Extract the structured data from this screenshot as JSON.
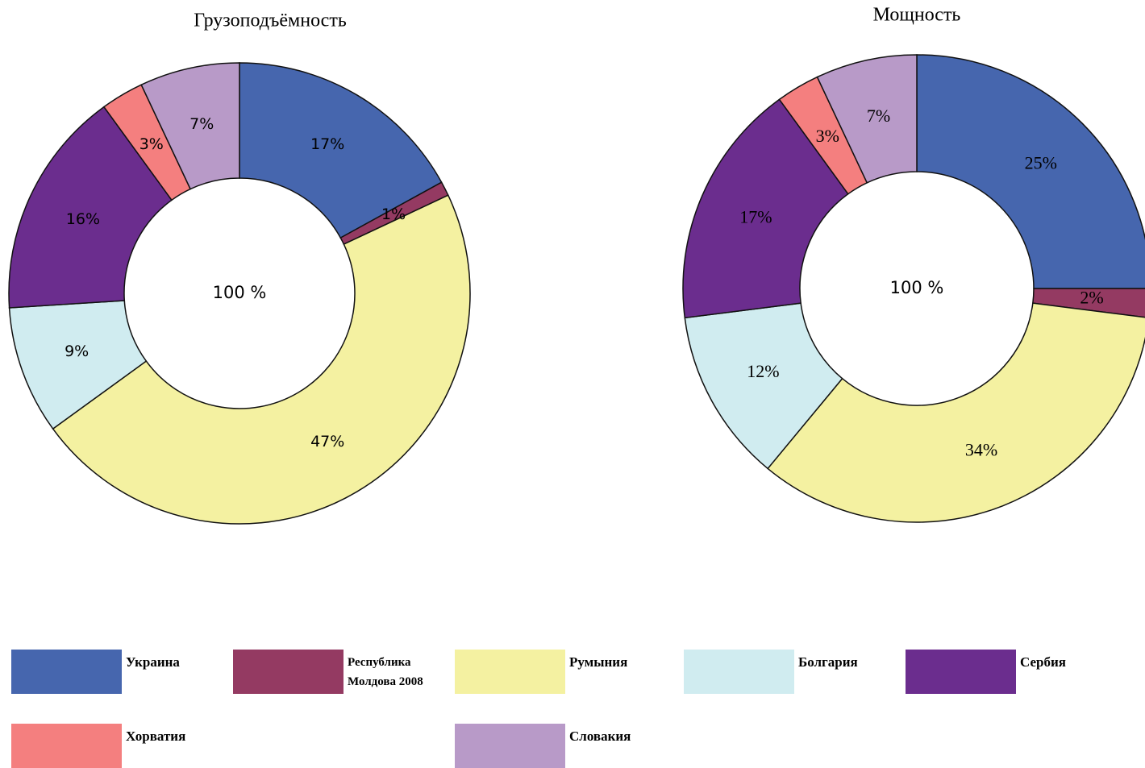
{
  "chart_data": [
    {
      "type": "pie",
      "title": "Грузоподъёмность",
      "center_label": "100 %",
      "categories": [
        "Украина",
        "Республика Молдова 2008",
        "Румыния",
        "Болгария",
        "Сербия",
        "Хорватия",
        "Словакия"
      ],
      "values": [
        17,
        1,
        47,
        9,
        16,
        3,
        7
      ],
      "value_labels": [
        "17%",
        "1%",
        "47%",
        "9%",
        "16%",
        "3%",
        "7%"
      ],
      "colors": [
        "#4666ae",
        "#943a62",
        "#f4f1a1",
        "#d0ecf0",
        "#6b2d8e",
        "#f47f7f",
        "#b89ac8"
      ]
    },
    {
      "type": "pie",
      "title": "Мощность",
      "center_label": "100 %",
      "categories": [
        "Украина",
        "Республика Молдова 2008",
        "Румыния",
        "Болгария",
        "Сербия",
        "Хорватия",
        "Словакия"
      ],
      "values": [
        25,
        2,
        34,
        12,
        17,
        3,
        7
      ],
      "value_labels": [
        "25%",
        "2%",
        "34%",
        "12%",
        "17%",
        "3%",
        "7%"
      ],
      "colors": [
        "#4666ae",
        "#943a62",
        "#f4f1a1",
        "#d0ecf0",
        "#6b2d8e",
        "#f47f7f",
        "#b89ac8"
      ]
    }
  ]
}
